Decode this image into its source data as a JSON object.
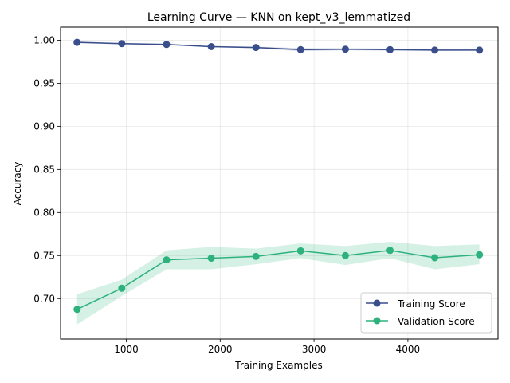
{
  "chart_data": {
    "type": "line",
    "title": "Learning Curve — KNN on kept_v3_lemmatized",
    "xlabel": "Training Examples",
    "ylabel": "Accuracy",
    "xlim": [
      300,
      4960
    ],
    "ylim": [
      0.653,
      1.0152
    ],
    "x_ticks": [
      1000,
      2000,
      3000,
      4000
    ],
    "y_ticks": [
      0.7,
      0.75,
      0.8,
      0.85,
      0.9,
      0.95,
      1.0
    ],
    "grid": true,
    "legend_position": "lower-right",
    "x": [
      476,
      952,
      1429,
      1905,
      2381,
      2857,
      3334,
      3810,
      4286,
      4762
    ],
    "series": [
      {
        "name": "Training Score",
        "color": "#3a4e8c",
        "values": [
          0.9975,
          0.996,
          0.995,
          0.9925,
          0.9915,
          0.989,
          0.9895,
          0.989,
          0.9885,
          0.9885
        ],
        "band_lower": [
          0.9965,
          0.9952,
          0.9942,
          0.9918,
          0.9905,
          0.9872,
          0.9882,
          0.9878,
          0.9875,
          0.9878
        ],
        "band_upper": [
          0.9985,
          0.9968,
          0.9958,
          0.9932,
          0.9925,
          0.9908,
          0.9908,
          0.9902,
          0.9895,
          0.9892
        ]
      },
      {
        "name": "Validation Score",
        "color": "#2db27d",
        "values": [
          0.6875,
          0.712,
          0.745,
          0.747,
          0.749,
          0.7555,
          0.75,
          0.756,
          0.7475,
          0.751
        ],
        "band_lower": [
          0.67,
          0.703,
          0.734,
          0.734,
          0.74,
          0.747,
          0.739,
          0.747,
          0.734,
          0.74
        ],
        "band_upper": [
          0.705,
          0.722,
          0.756,
          0.76,
          0.758,
          0.764,
          0.761,
          0.766,
          0.761,
          0.763
        ]
      }
    ]
  }
}
